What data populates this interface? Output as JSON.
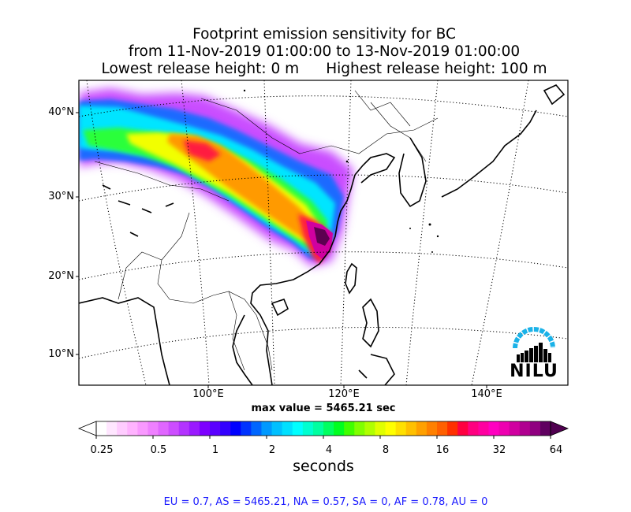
{
  "title": {
    "line1": "Footprint emission sensitivity for BC",
    "line2": "from 11-Nov-2019 01:00:00 to 13-Nov-2019 01:00:00",
    "lowest_release": "Lowest release height: 0 m",
    "highest_release": "Highest release height: 100 m"
  },
  "map": {
    "lat_labels": [
      "40°N",
      "30°N",
      "20°N",
      "10°N"
    ],
    "lon_labels": [
      "100°E",
      "120°E",
      "140°E"
    ],
    "max_value": "max value = 5465.21 sec",
    "logo_text": "NILU",
    "coastline_color": "#000000"
  },
  "colorbar": {
    "ticks": [
      "0.25",
      "0.5",
      "1",
      "2",
      "4",
      "8",
      "16",
      "32",
      "64"
    ],
    "unit": "seconds",
    "colors": [
      "#ffffff",
      "#ffe6ff",
      "#ffccff",
      "#ffb3ff",
      "#f999ff",
      "#ef80ff",
      "#e066ff",
      "#cc4dff",
      "#b333ff",
      "#9a1aff",
      "#7d00ff",
      "#5a00ff",
      "#3300ff",
      "#0000ff",
      "#0033ff",
      "#0066ff",
      "#0099ff",
      "#00c0ff",
      "#00e0ff",
      "#00ffff",
      "#00ffd0",
      "#00ffa0",
      "#00ff60",
      "#00ff20",
      "#40ff00",
      "#80ff00",
      "#b0ff00",
      "#e0ff00",
      "#ffff00",
      "#ffe000",
      "#ffc000",
      "#ffa000",
      "#ff8000",
      "#ff6000",
      "#ff3000",
      "#ff0040",
      "#ff0080",
      "#ff00a0",
      "#ff00c0",
      "#ee00b0",
      "#d000a0",
      "#b00090",
      "#900080",
      "#600060"
    ]
  },
  "region_stats": "EU = 0.7,  AS = 5465.21,  NA = 0.57,  SA = 0,  AF = 0.78,  AU = 0"
}
